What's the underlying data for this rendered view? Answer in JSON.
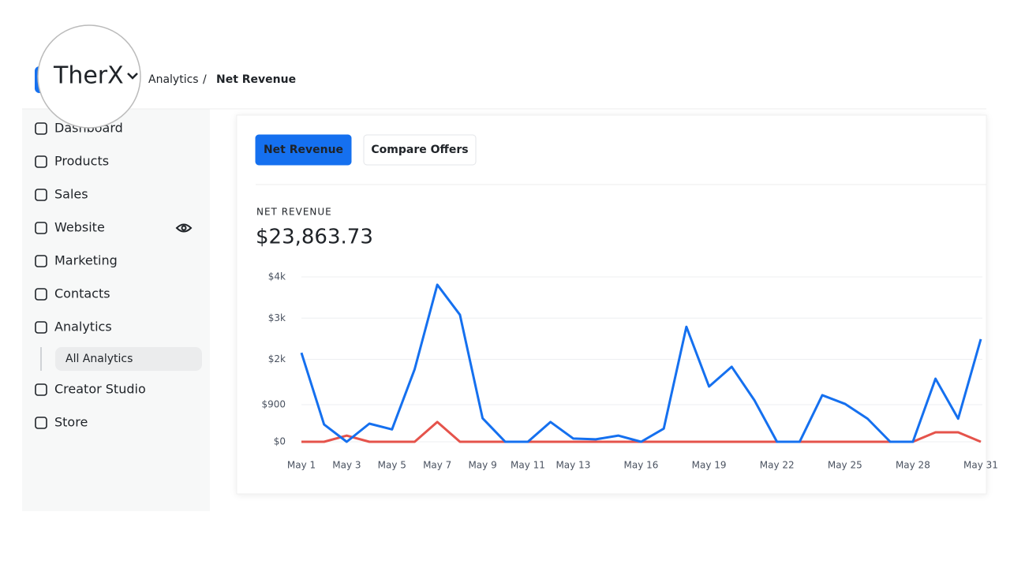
{
  "header": {
    "brand": "TherX",
    "breadcrumb": [
      "Analytics",
      "Net Revenue"
    ],
    "separator": "/"
  },
  "sidebar": {
    "items": [
      {
        "label": "Dashboard"
      },
      {
        "label": "Products"
      },
      {
        "label": "Sales"
      },
      {
        "label": "Website"
      },
      {
        "label": "Marketing"
      },
      {
        "label": "Contacts"
      },
      {
        "label": "Analytics",
        "children": [
          "All Analytics"
        ]
      },
      {
        "label": "Creator Studio"
      },
      {
        "label": "Store"
      }
    ]
  },
  "tabs": [
    "Net Revenue",
    "Compare Offers"
  ],
  "active_tab": 0,
  "chart_data": {
    "type": "line",
    "title": "NET REVENUE",
    "subtitle": "$23,863.73",
    "categories": [
      "May 1",
      null,
      "May 3",
      null,
      "May 5",
      null,
      "May 7",
      null,
      "May 9",
      null,
      "May 11",
      null,
      "May 13",
      null,
      null,
      "May 16",
      null,
      null,
      "May 19",
      null,
      null,
      "May 22",
      null,
      null,
      "May 25",
      null,
      null,
      "May 28",
      null,
      null,
      "May 31"
    ],
    "series": [
      {
        "color": "#1570ef",
        "values": [
          2160,
          420,
          0,
          440,
          300,
          1760,
          3810,
          3080,
          570,
          0,
          0,
          480,
          80,
          60,
          150,
          0,
          320,
          2790,
          1340,
          1820,
          1010,
          0,
          0,
          1130,
          920,
          560,
          0,
          0,
          1530,
          560,
          2490
        ]
      },
      {
        "color": "#e5534b",
        "values": [
          0,
          0,
          150,
          0,
          0,
          0,
          480,
          0,
          0,
          0,
          0,
          0,
          0,
          0,
          0,
          0,
          0,
          0,
          0,
          0,
          0,
          0,
          0,
          0,
          0,
          0,
          0,
          0,
          230,
          230,
          0
        ]
      }
    ],
    "ylim": [
      0,
      4000
    ],
    "yticks": [
      {
        "value": 0,
        "label": "$0"
      },
      {
        "value": 900,
        "label": "$900"
      },
      {
        "value": 2000,
        "label": "$2k"
      },
      {
        "value": 3000,
        "label": "$3k"
      },
      {
        "value": 4000,
        "label": "$4k"
      }
    ],
    "grid": true
  }
}
